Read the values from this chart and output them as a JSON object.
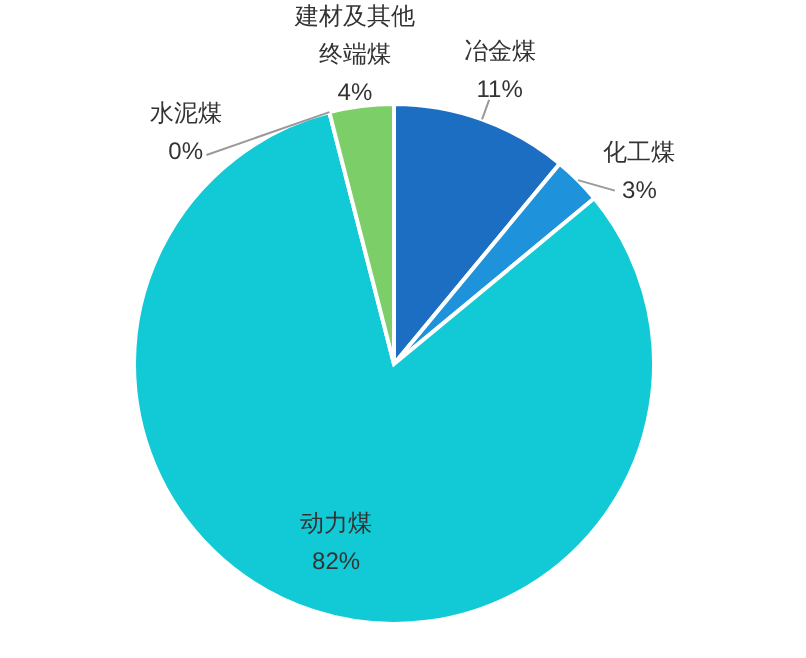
{
  "chart_data": {
    "type": "pie",
    "categories": [
      "冶金煤",
      "化工煤",
      "动力煤",
      "水泥煤",
      "建材及其他终端煤"
    ],
    "values": [
      11,
      3,
      82,
      0,
      4
    ],
    "colors": [
      "#1b6ec2",
      "#1e93dc",
      "#12c9d6",
      null,
      "#7ccf68"
    ],
    "value_labels": [
      "11%",
      "3%",
      "82%",
      "0%",
      "4%"
    ],
    "legend": false
  }
}
